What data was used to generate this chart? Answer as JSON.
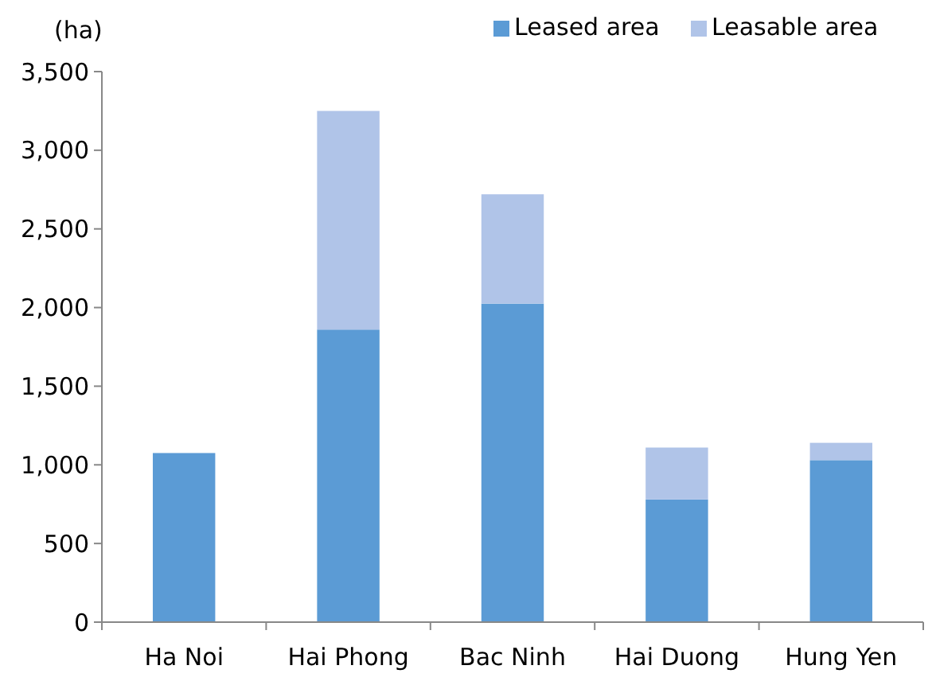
{
  "chart_data": {
    "type": "bar",
    "stacked": true,
    "ylabel": "(ha)",
    "categories": [
      "Ha Noi",
      "Hai Phong",
      "Bac Ninh",
      "Hai Duong",
      "Hung Yen"
    ],
    "series": [
      {
        "name": "Leased area",
        "color": "#5b9bd5",
        "values": [
          1075,
          1860,
          2025,
          780,
          1030
        ]
      },
      {
        "name": "Leasable area",
        "color": "#b0c4e8",
        "values": [
          0,
          1390,
          695,
          330,
          110
        ]
      }
    ],
    "ylim": [
      0,
      3500
    ],
    "yticks": [
      {
        "value": 0,
        "label": "0"
      },
      {
        "value": 500,
        "label": "500"
      },
      {
        "value": 1000,
        "label": "1,000"
      },
      {
        "value": 1500,
        "label": "1,500"
      },
      {
        "value": 2000,
        "label": "2,000"
      },
      {
        "value": 2500,
        "label": "2,500"
      },
      {
        "value": 3000,
        "label": "3,000"
      },
      {
        "value": 3500,
        "label": "3,500"
      }
    ],
    "grid": false,
    "legend": "top right"
  }
}
